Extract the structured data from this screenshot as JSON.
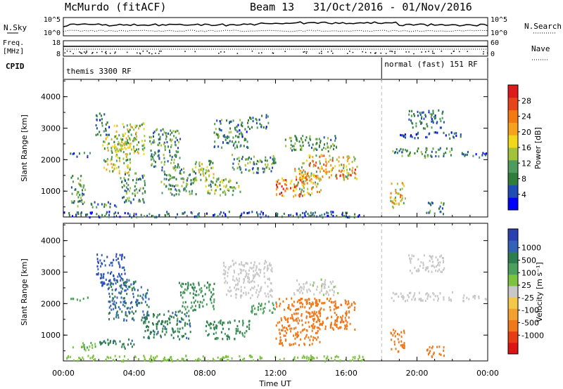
{
  "header": {
    "station": "McMurdo (fitACF)",
    "beam": "Beam 13",
    "date_range": "31/Oct/2016 - 01/Nov/2016"
  },
  "aux_panels": {
    "nsky_label": "N.Sky",
    "nsky_ticks": [
      "10^5",
      "10^0"
    ],
    "nsearch_label": "N.Search",
    "nsearch_ticks": [
      "10^5",
      "10^0"
    ],
    "freq_label": "Freq.",
    "freq_unit": "[MHz]",
    "freq_ticks": [
      "18",
      "8"
    ],
    "nave_label": "Nave",
    "nave_ticks": [
      "60",
      "0"
    ]
  },
  "cpid": {
    "label": "CPID",
    "modes": [
      {
        "name": "themis 3300 RF",
        "start_hour": 0
      },
      {
        "name": "normal (fast) 151 RF",
        "start_hour": 18
      }
    ]
  },
  "chart_data": [
    {
      "type": "heatmap",
      "name": "power-panel",
      "ylabel": "Slant Range [km]",
      "xlabel": "",
      "ylim": [
        180,
        4550
      ],
      "yticks": [
        1000,
        2000,
        3000,
        4000
      ],
      "xlim_hours": [
        0,
        24
      ],
      "colorbar": {
        "label": "Power [dB]",
        "range": [
          0,
          32
        ],
        "ticks": [
          "28",
          "24",
          "20",
          "16",
          "12",
          "8",
          "4"
        ],
        "colors": [
          "#0000ff",
          "#1f4db3",
          "#2e7d3a",
          "#4f9a5e",
          "#a2c13c",
          "#f2d81a",
          "#f5a21e",
          "#f27a10",
          "#e8441a",
          "#dd1b1b"
        ]
      },
      "echo_regions": [
        {
          "t0": 0.4,
          "t1": 1.2,
          "r0": 550,
          "r1": 1600,
          "level": 10
        },
        {
          "t0": 0.3,
          "t1": 1.5,
          "r0": 2100,
          "r1": 2250,
          "level": 6
        },
        {
          "t0": 1.5,
          "t1": 3.0,
          "r0": 500,
          "r1": 700,
          "level": 8
        },
        {
          "t0": 1.8,
          "t1": 2.6,
          "r0": 2800,
          "r1": 3500,
          "level": 6
        },
        {
          "t0": 2.2,
          "t1": 3.8,
          "r0": 1600,
          "r1": 2800,
          "level": 14
        },
        {
          "t0": 2.8,
          "t1": 4.6,
          "r0": 2200,
          "r1": 3200,
          "level": 14
        },
        {
          "t0": 3.2,
          "t1": 4.6,
          "r0": 650,
          "r1": 1600,
          "level": 10
        },
        {
          "t0": 4.8,
          "t1": 6.6,
          "r0": 1800,
          "r1": 3000,
          "level": 10
        },
        {
          "t0": 5.5,
          "t1": 7.5,
          "r0": 900,
          "r1": 1800,
          "level": 10
        },
        {
          "t0": 7.3,
          "t1": 8.5,
          "r0": 1300,
          "r1": 2000,
          "level": 14
        },
        {
          "t0": 8.0,
          "t1": 10.0,
          "r0": 900,
          "r1": 1500,
          "level": 12
        },
        {
          "t0": 8.5,
          "t1": 10.5,
          "r0": 2400,
          "r1": 3300,
          "level": 8
        },
        {
          "t0": 9.5,
          "t1": 12.0,
          "r0": 1600,
          "r1": 2200,
          "level": 10
        },
        {
          "t0": 10.5,
          "t1": 11.6,
          "r0": 3000,
          "r1": 3450,
          "level": 6
        },
        {
          "t0": 12.0,
          "t1": 13.5,
          "r0": 800,
          "r1": 1500,
          "level": 26
        },
        {
          "t0": 13.0,
          "t1": 14.6,
          "r0": 900,
          "r1": 1800,
          "level": 18
        },
        {
          "t0": 13.5,
          "t1": 16.6,
          "r0": 1400,
          "r1": 2200,
          "level": 20
        },
        {
          "t0": 12.5,
          "t1": 15.5,
          "r0": 2300,
          "r1": 2800,
          "level": 10
        },
        {
          "t0": 0.0,
          "t1": 17.0,
          "r0": 200,
          "r1": 380,
          "level": 6
        },
        {
          "t0": 18.4,
          "t1": 19.3,
          "r0": 500,
          "r1": 1300,
          "level": 18
        },
        {
          "t0": 19.5,
          "t1": 21.5,
          "r0": 3000,
          "r1": 3600,
          "level": 8
        },
        {
          "t0": 18.5,
          "t1": 22.0,
          "r0": 2100,
          "r1": 2400,
          "level": 10
        },
        {
          "t0": 19.0,
          "t1": 22.5,
          "r0": 2700,
          "r1": 2900,
          "level": 6
        },
        {
          "t0": 22.5,
          "t1": 24.0,
          "r0": 2100,
          "r1": 2300,
          "level": 6
        },
        {
          "t0": 20.5,
          "t1": 21.5,
          "r0": 300,
          "r1": 700,
          "level": 8
        }
      ]
    },
    {
      "type": "heatmap",
      "name": "velocity-panel",
      "ylabel": "Slant Range [km]",
      "xlabel": "Time UT",
      "ylim": [
        180,
        4550
      ],
      "yticks": [
        1000,
        2000,
        3000,
        4000
      ],
      "xticks": [
        "00:00",
        "04:00",
        "08:00",
        "12:00",
        "16:00",
        "20:00",
        "00:00"
      ],
      "xlim_hours": [
        0,
        24
      ],
      "colorbar": {
        "label": "Velocity [m s⁻¹]",
        "ticks": [
          "1000",
          "500",
          "100",
          "25",
          "-25",
          "-100",
          "-500",
          "-1000"
        ],
        "colors": [
          "#2a3fb0",
          "#3461b8",
          "#2e7d4f",
          "#4aa05c",
          "#7cc43e",
          "#c8c8c8",
          "#f2c84a",
          "#f2a030",
          "#f07818",
          "#e83c14",
          "#dd1414"
        ]
      },
      "echo_regions": [
        {
          "t0": 0.4,
          "t1": 1.8,
          "r0": 550,
          "r1": 800,
          "level": 100
        },
        {
          "t0": 0.3,
          "t1": 1.5,
          "r0": 2100,
          "r1": 2250,
          "level": 200
        },
        {
          "t0": 1.8,
          "t1": 3.5,
          "r0": 2600,
          "r1": 3600,
          "level": 1000
        },
        {
          "t0": 2.5,
          "t1": 4.8,
          "r0": 1500,
          "r1": 2800,
          "level": 500
        },
        {
          "t0": 2.0,
          "t1": 4.0,
          "r0": 600,
          "r1": 900,
          "level": 400
        },
        {
          "t0": 4.5,
          "t1": 7.2,
          "r0": 900,
          "r1": 1800,
          "level": 400
        },
        {
          "t0": 6.5,
          "t1": 8.5,
          "r0": 1800,
          "r1": 2700,
          "level": 300
        },
        {
          "t0": 8.0,
          "t1": 10.5,
          "r0": 900,
          "r1": 1500,
          "level": 350
        },
        {
          "t0": 9.0,
          "t1": 11.8,
          "r0": 2200,
          "r1": 3400,
          "level": 15
        },
        {
          "t0": 10.5,
          "t1": 12.0,
          "r0": 1700,
          "r1": 2100,
          "level": 200
        },
        {
          "t0": 12.0,
          "t1": 14.5,
          "r0": 700,
          "r1": 2200,
          "level": -250
        },
        {
          "t0": 14.0,
          "t1": 16.6,
          "r0": 1200,
          "r1": 2200,
          "level": -300
        },
        {
          "t0": 13.0,
          "t1": 15.5,
          "r0": 2300,
          "r1": 2800,
          "level": 20
        },
        {
          "t0": 0.0,
          "t1": 17.0,
          "r0": 200,
          "r1": 380,
          "level": 60
        },
        {
          "t0": 18.4,
          "t1": 19.3,
          "r0": 500,
          "r1": 1200,
          "level": -300
        },
        {
          "t0": 19.5,
          "t1": 21.5,
          "r0": 3000,
          "r1": 3600,
          "level": 10
        },
        {
          "t0": 18.5,
          "t1": 22.0,
          "r0": 2100,
          "r1": 2400,
          "level": 15
        },
        {
          "t0": 22.5,
          "t1": 24.0,
          "r0": 2100,
          "r1": 2300,
          "level": 10
        },
        {
          "t0": 20.5,
          "t1": 21.5,
          "r0": 300,
          "r1": 700,
          "level": -150
        }
      ]
    }
  ]
}
